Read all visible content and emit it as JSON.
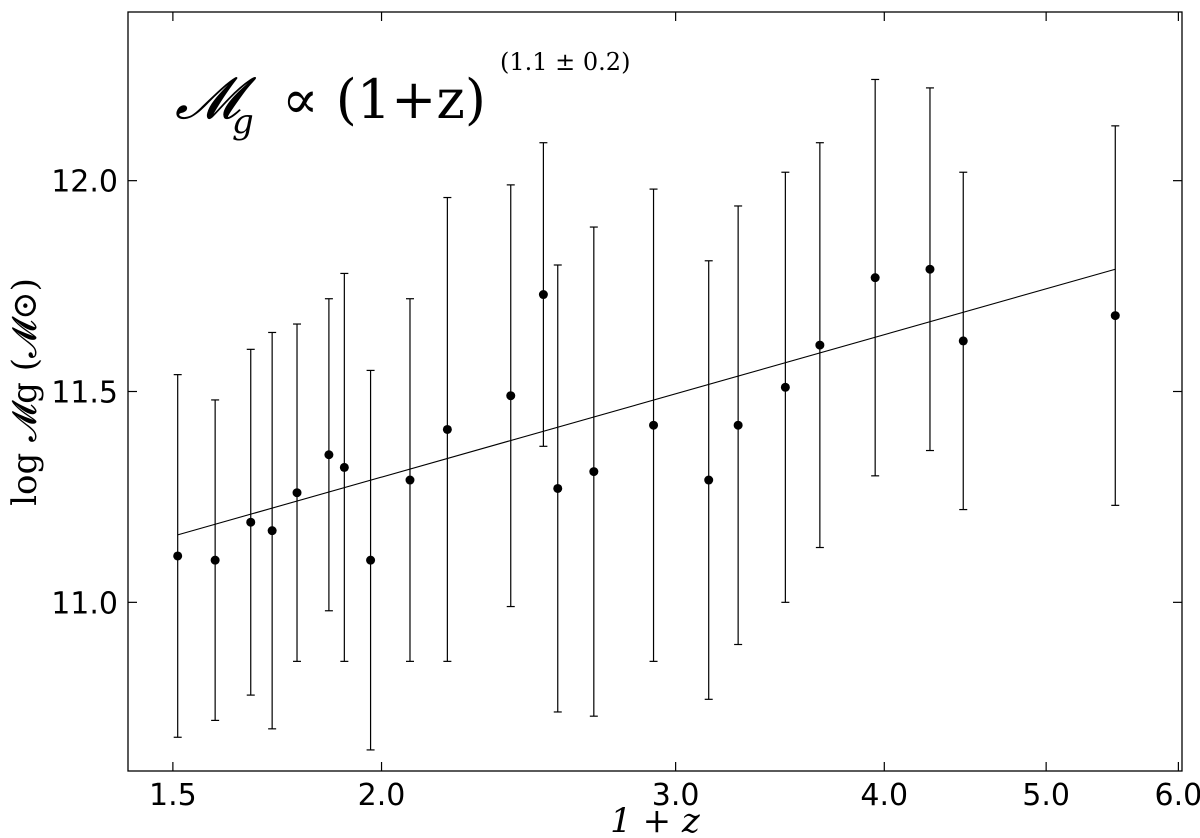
{
  "chart_data": {
    "type": "scatter",
    "xscale": "log",
    "xlim": [
      1.41,
      6.03
    ],
    "ylim": [
      10.6,
      12.4
    ],
    "xticks": [
      1.5,
      2.0,
      3.0,
      4.0,
      5.0,
      6.0
    ],
    "xtick_labels": [
      "1.5",
      "2.0",
      "3.0",
      "4.0",
      "5.0",
      "6.0"
    ],
    "yticks": [
      11.0,
      11.5,
      12.0
    ],
    "ytick_labels": [
      "11.0",
      "11.5",
      "12.0"
    ],
    "xlabel": "1 + z",
    "ylabel": "log 𝓜g (𝓜⊙)",
    "annotation": {
      "lhs": "𝓜",
      "lhs_sub": "g",
      "relation": "∝ (1+z)",
      "exponent": "(1.1 ± 0.2)"
    },
    "grid": false,
    "points": [
      {
        "x": 1.51,
        "y": 11.11,
        "err": 0.43
      },
      {
        "x": 1.59,
        "y": 11.1,
        "err": 0.38
      },
      {
        "x": 1.67,
        "y": 11.19,
        "err": 0.41
      },
      {
        "x": 1.72,
        "y": 11.17,
        "err": 0.47
      },
      {
        "x": 1.78,
        "y": 11.26,
        "err": 0.4
      },
      {
        "x": 1.86,
        "y": 11.35,
        "err": 0.37
      },
      {
        "x": 1.9,
        "y": 11.32,
        "err": 0.46
      },
      {
        "x": 1.97,
        "y": 11.1,
        "err": 0.45
      },
      {
        "x": 2.08,
        "y": 11.29,
        "err": 0.43
      },
      {
        "x": 2.19,
        "y": 11.41,
        "err": 0.55
      },
      {
        "x": 2.39,
        "y": 11.49,
        "err": 0.5
      },
      {
        "x": 2.5,
        "y": 11.73,
        "err": 0.36
      },
      {
        "x": 2.55,
        "y": 11.27,
        "err": 0.53
      },
      {
        "x": 2.68,
        "y": 11.31,
        "err": 0.58
      },
      {
        "x": 2.91,
        "y": 11.42,
        "err": 0.56
      },
      {
        "x": 3.14,
        "y": 11.29,
        "err": 0.52
      },
      {
        "x": 3.27,
        "y": 11.42,
        "err": 0.52
      },
      {
        "x": 3.49,
        "y": 11.51,
        "err": 0.51
      },
      {
        "x": 3.66,
        "y": 11.61,
        "err": 0.48
      },
      {
        "x": 3.95,
        "y": 11.77,
        "err": 0.47
      },
      {
        "x": 4.26,
        "y": 11.79,
        "err": 0.43
      },
      {
        "x": 4.46,
        "y": 11.62,
        "err": 0.4
      },
      {
        "x": 5.5,
        "y": 11.68,
        "err": 0.45
      }
    ],
    "fit_line": {
      "x": [
        1.51,
        5.5
      ],
      "y": [
        11.16,
        11.79
      ]
    }
  }
}
